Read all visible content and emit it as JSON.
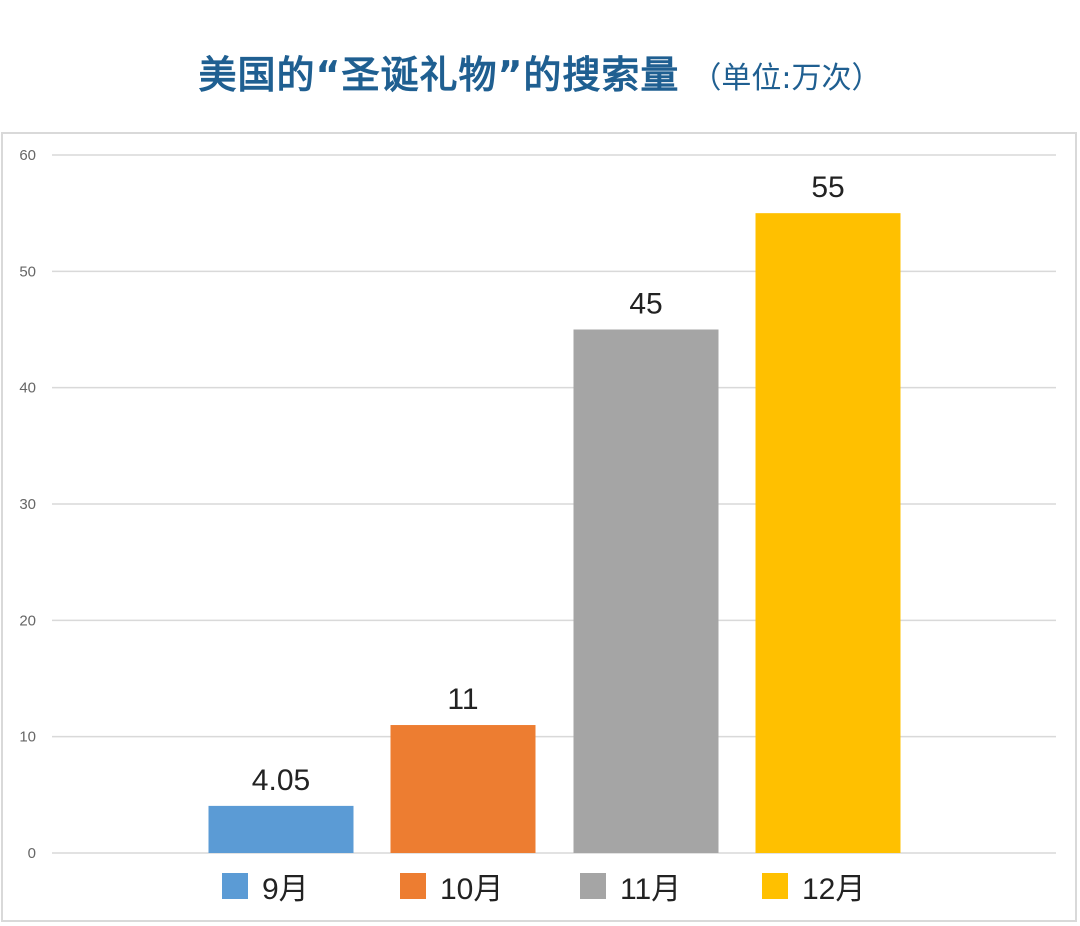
{
  "title": {
    "main": "美国的“圣诞礼物”的搜索量",
    "unit": "（单位:万次）"
  },
  "chart_data": {
    "type": "bar",
    "categories": [
      "9月",
      "10月",
      "11月",
      "12月"
    ],
    "values": [
      4.05,
      11,
      45,
      55
    ],
    "data_labels": [
      "4.05",
      "11",
      "45",
      "55"
    ],
    "colors": [
      "#5b9bd5",
      "#ed7d31",
      "#a5a5a5",
      "#ffc000"
    ],
    "ylim": [
      0,
      60
    ],
    "yticks": [
      0,
      10,
      20,
      30,
      40,
      50,
      60
    ],
    "grid": true,
    "legend_position": "bottom",
    "xlabel": "",
    "ylabel": ""
  }
}
